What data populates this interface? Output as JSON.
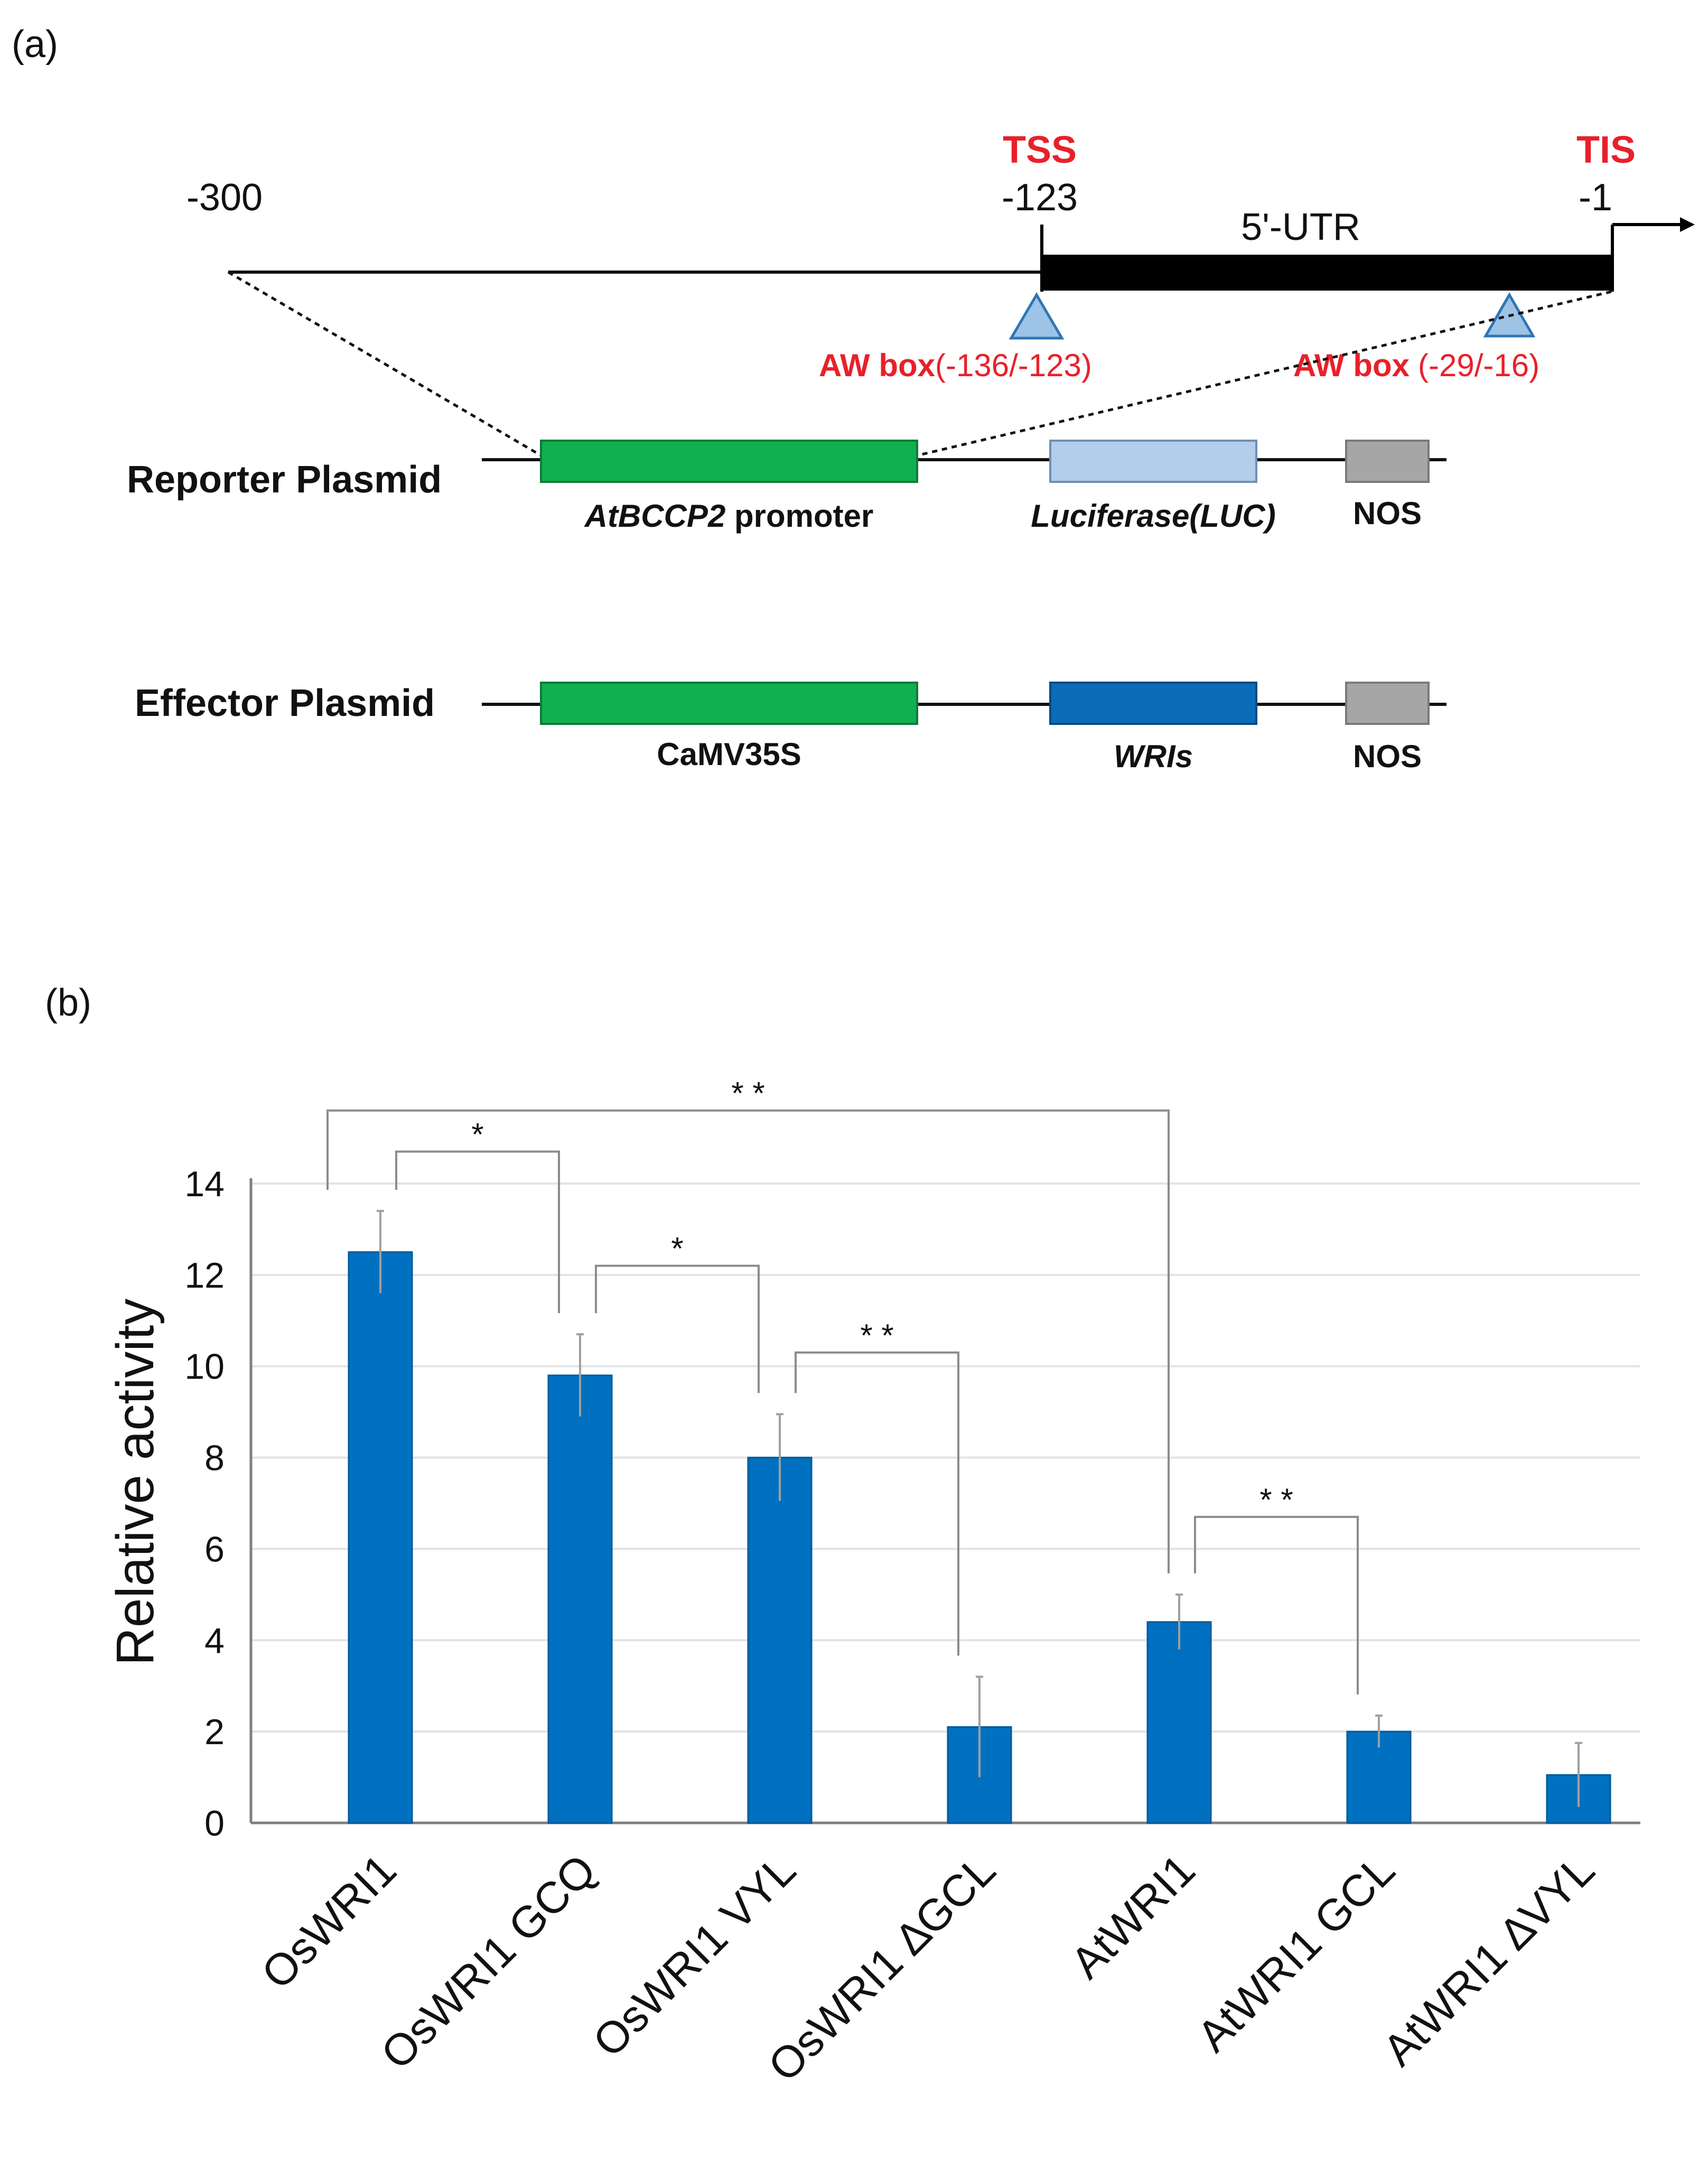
{
  "panel_a": {
    "label": "(a)",
    "promoter_map": {
      "start_label": "-300",
      "tss_label": "TSS",
      "tss_pos": "-123",
      "utr_label": "5'-UTR",
      "tis_label": "TIS",
      "tis_pos": "-1",
      "aw_box_1_name": "AW box",
      "aw_box_1_range": "(-136/-123)",
      "aw_box_2_name": "AW box",
      "aw_box_2_range": "(-29/-16)"
    },
    "reporter": {
      "title": "Reporter Plasmid",
      "promoter_gene": "AtBCCP2",
      "promoter_word": " promoter",
      "reporter_gene": "Luciferase(LUC)",
      "terminator": "NOS"
    },
    "effector": {
      "title": "Effector Plasmid",
      "promoter": "CaMV35S",
      "gene": "WRIs",
      "terminator": "NOS"
    },
    "colors": {
      "text_red": "#e8202a",
      "promoter_green": "#10b050",
      "luc_blue": "#b4cdea",
      "wri_blue": "#0a6cb8",
      "nos_gray": "#a6a6a6",
      "triangle_blue": "#9dc3e6"
    }
  },
  "panel_b": {
    "label": "(b)",
    "colors": {
      "bar": "#0070c0",
      "grid": "#e3e3e3",
      "bracket": "#8c8c8c"
    }
  },
  "chart_data": {
    "type": "bar",
    "ylabel": "Relative activity",
    "xlabel": "",
    "ylim": [
      0,
      14
    ],
    "yticks": [
      0,
      2,
      4,
      6,
      8,
      10,
      12,
      14
    ],
    "grid": true,
    "categories": [
      "OsWRI1",
      "OsWRI1 GCQ",
      "OsWRI1 VYL",
      "OsWRI1 ∆GCL",
      "AtWRI1",
      "AtWRI1 GCL",
      "AtWRI1 ∆VYL"
    ],
    "values": [
      12.5,
      9.8,
      8.0,
      2.1,
      4.4,
      2.0,
      1.05
    ],
    "errors": [
      0.9,
      0.9,
      0.95,
      1.1,
      0.6,
      0.35,
      0.7
    ],
    "significance": [
      {
        "from": 0,
        "to": 1,
        "label": "*",
        "y": 14.7
      },
      {
        "from": 1,
        "to": 2,
        "label": "*",
        "y": 12.2
      },
      {
        "from": 2,
        "to": 3,
        "label": "* *",
        "y": 10.3
      },
      {
        "from": 0,
        "to": 4,
        "label": "* *",
        "y": 15.6
      },
      {
        "from": 4,
        "to": 5,
        "label": "* *",
        "y": 6.7
      }
    ]
  }
}
